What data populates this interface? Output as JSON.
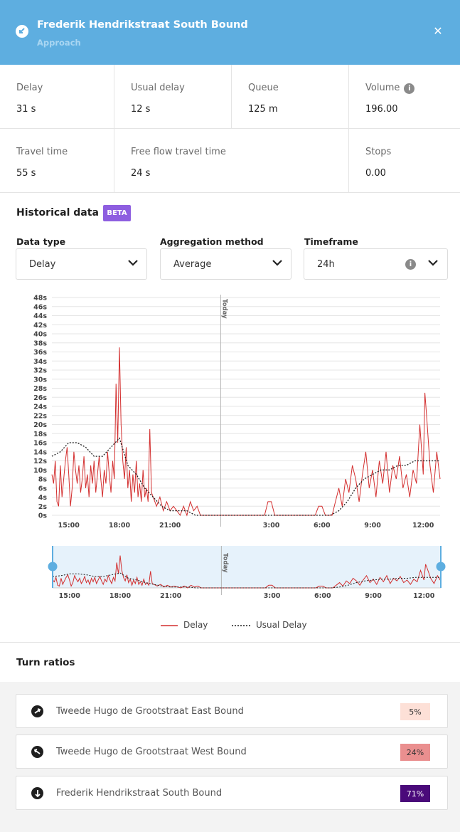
{
  "header": {
    "title": "Frederik Hendrikstraat South Bound",
    "subtitle": "Approach",
    "close_icon": "close-icon",
    "direction_icon": "approach-direction-icon"
  },
  "stats": [
    {
      "label": "Delay",
      "value": "31 s"
    },
    {
      "label": "Usual delay",
      "value": "12 s"
    },
    {
      "label": "Queue",
      "value": "125 m"
    },
    {
      "label": "Volume",
      "value": "196.00",
      "info": "i"
    },
    {
      "label": "Travel time",
      "value": "55 s"
    },
    {
      "label": "Free flow travel time",
      "value": "24 s"
    },
    {
      "label": "Stops",
      "value": "0.00"
    }
  ],
  "historical": {
    "title": "Historical data",
    "badge": "BETA",
    "filters": [
      {
        "label": "Data type",
        "value": "Delay"
      },
      {
        "label": "Aggregation method",
        "value": "Average"
      },
      {
        "label": "Timeframe",
        "value": "24h",
        "info": "i"
      }
    ]
  },
  "chart_data": {
    "type": "line",
    "y_unit": "s",
    "ylim": [
      0,
      48
    ],
    "y_ticks": [
      "0s",
      "2s",
      "4s",
      "6s",
      "8s",
      "10s",
      "12s",
      "14s",
      "16s",
      "18s",
      "20s",
      "22s",
      "24s",
      "26s",
      "28s",
      "30s",
      "32s",
      "34s",
      "36s",
      "38s",
      "40s",
      "42s",
      "44s",
      "46s",
      "48s"
    ],
    "x_ticks": [
      "15:00",
      "18:00",
      "21:00",
      "3:00",
      "6:00",
      "9:00",
      "12:00"
    ],
    "x_tick_hours": [
      15,
      18,
      21,
      27,
      30,
      33,
      36
    ],
    "x_range_hours": [
      14.0,
      37.0
    ],
    "marker": {
      "label": "Today",
      "hour": 24
    },
    "grid": true,
    "legend_placement": "bottom",
    "series": [
      {
        "name": "Delay",
        "color": "#d32f2f",
        "style": "solid",
        "points": [
          [
            14.0,
            9
          ],
          [
            14.1,
            7
          ],
          [
            14.2,
            12
          ],
          [
            14.3,
            3
          ],
          [
            14.4,
            2
          ],
          [
            14.5,
            11
          ],
          [
            14.6,
            4
          ],
          [
            14.7,
            8
          ],
          [
            14.8,
            12
          ],
          [
            14.9,
            15
          ],
          [
            15.0,
            9
          ],
          [
            15.1,
            2
          ],
          [
            15.2,
            6
          ],
          [
            15.3,
            14
          ],
          [
            15.4,
            10
          ],
          [
            15.5,
            7
          ],
          [
            15.6,
            11
          ],
          [
            15.7,
            5
          ],
          [
            15.8,
            8
          ],
          [
            15.9,
            13
          ],
          [
            16.0,
            6
          ],
          [
            16.1,
            9
          ],
          [
            16.2,
            4
          ],
          [
            16.3,
            11
          ],
          [
            16.4,
            7
          ],
          [
            16.5,
            12
          ],
          [
            16.6,
            5
          ],
          [
            16.7,
            9
          ],
          [
            16.8,
            13
          ],
          [
            16.9,
            8
          ],
          [
            17.0,
            4
          ],
          [
            17.1,
            10
          ],
          [
            17.2,
            7
          ],
          [
            17.3,
            14
          ],
          [
            17.4,
            9
          ],
          [
            17.5,
            5
          ],
          [
            17.6,
            12
          ],
          [
            17.7,
            8
          ],
          [
            17.8,
            29
          ],
          [
            17.9,
            16
          ],
          [
            18.0,
            37
          ],
          [
            18.1,
            20
          ],
          [
            18.2,
            12
          ],
          [
            18.3,
            8
          ],
          [
            18.4,
            15
          ],
          [
            18.5,
            6
          ],
          [
            18.6,
            10
          ],
          [
            18.7,
            3
          ],
          [
            18.8,
            9
          ],
          [
            18.9,
            5
          ],
          [
            19.0,
            12
          ],
          [
            19.1,
            4
          ],
          [
            19.2,
            7
          ],
          [
            19.3,
            3
          ],
          [
            19.4,
            10
          ],
          [
            19.5,
            4
          ],
          [
            19.6,
            6
          ],
          [
            19.7,
            3
          ],
          [
            19.8,
            19
          ],
          [
            19.9,
            5
          ],
          [
            20.0,
            4
          ],
          [
            20.2,
            2
          ],
          [
            20.4,
            4
          ],
          [
            20.6,
            1
          ],
          [
            20.8,
            3
          ],
          [
            21.0,
            1
          ],
          [
            21.2,
            2
          ],
          [
            21.4,
            1
          ],
          [
            21.6,
            0
          ],
          [
            21.8,
            2
          ],
          [
            22.0,
            0
          ],
          [
            22.2,
            3
          ],
          [
            22.4,
            1
          ],
          [
            22.6,
            2
          ],
          [
            22.8,
            0
          ],
          [
            23.0,
            0
          ],
          [
            23.2,
            0
          ],
          [
            23.6,
            0
          ],
          [
            24.0,
            0
          ],
          [
            25.0,
            0
          ],
          [
            26.0,
            0
          ],
          [
            26.6,
            0
          ],
          [
            26.8,
            3
          ],
          [
            27.0,
            3
          ],
          [
            27.2,
            0
          ],
          [
            27.6,
            0
          ],
          [
            28.0,
            0
          ],
          [
            29.0,
            0
          ],
          [
            29.6,
            0
          ],
          [
            29.8,
            2
          ],
          [
            30.0,
            2
          ],
          [
            30.2,
            0
          ],
          [
            30.6,
            0
          ],
          [
            30.8,
            3
          ],
          [
            31.0,
            6
          ],
          [
            31.2,
            2
          ],
          [
            31.4,
            8
          ],
          [
            31.6,
            5
          ],
          [
            31.8,
            11
          ],
          [
            32.0,
            8
          ],
          [
            32.2,
            3
          ],
          [
            32.4,
            9
          ],
          [
            32.6,
            14
          ],
          [
            32.8,
            6
          ],
          [
            33.0,
            10
          ],
          [
            33.2,
            4
          ],
          [
            33.4,
            12
          ],
          [
            33.6,
            7
          ],
          [
            33.8,
            14
          ],
          [
            34.0,
            5
          ],
          [
            34.2,
            11
          ],
          [
            34.4,
            8
          ],
          [
            34.6,
            13
          ],
          [
            34.8,
            6
          ],
          [
            35.0,
            9
          ],
          [
            35.2,
            4
          ],
          [
            35.4,
            10
          ],
          [
            35.6,
            7
          ],
          [
            35.8,
            20
          ],
          [
            36.0,
            9
          ],
          [
            36.1,
            27
          ],
          [
            36.2,
            22
          ],
          [
            36.4,
            11
          ],
          [
            36.6,
            5
          ],
          [
            36.8,
            14
          ],
          [
            37.0,
            8
          ]
        ]
      },
      {
        "name": "Usual Delay",
        "color": "#1f1f1f",
        "style": "dotted",
        "points": [
          [
            14.0,
            13
          ],
          [
            14.5,
            14
          ],
          [
            15.0,
            16
          ],
          [
            15.5,
            16
          ],
          [
            16.0,
            15
          ],
          [
            16.5,
            13
          ],
          [
            17.0,
            13
          ],
          [
            17.5,
            15
          ],
          [
            18.0,
            17
          ],
          [
            18.5,
            11
          ],
          [
            19.0,
            9
          ],
          [
            19.5,
            6
          ],
          [
            20.0,
            4
          ],
          [
            20.5,
            2
          ],
          [
            21.0,
            1
          ],
          [
            21.5,
            1
          ],
          [
            22.0,
            1
          ],
          [
            22.5,
            0
          ],
          [
            23.0,
            0
          ],
          [
            24.0,
            0
          ],
          [
            25.0,
            0
          ],
          [
            26.0,
            0
          ],
          [
            27.0,
            0
          ],
          [
            28.0,
            0
          ],
          [
            29.0,
            0
          ],
          [
            30.0,
            0
          ],
          [
            30.5,
            0
          ],
          [
            31.0,
            1
          ],
          [
            31.5,
            3
          ],
          [
            32.0,
            6
          ],
          [
            32.5,
            8
          ],
          [
            33.0,
            9
          ],
          [
            33.5,
            10
          ],
          [
            34.0,
            10
          ],
          [
            34.5,
            11
          ],
          [
            35.0,
            11
          ],
          [
            35.5,
            12
          ],
          [
            36.0,
            12
          ],
          [
            36.5,
            12
          ],
          [
            37.0,
            12
          ]
        ]
      }
    ]
  },
  "brush": {
    "marker_label": "Today",
    "x_ticks": [
      "15:00",
      "18:00",
      "21:00",
      "3:00",
      "6:00",
      "9:00",
      "12:00"
    ]
  },
  "legend": {
    "delay": "Delay",
    "usual": "Usual Delay"
  },
  "turns": {
    "title": "Turn ratios",
    "items": [
      {
        "name": "Tweede Hugo de Grootstraat East Bound",
        "pct": "5%",
        "color": "#fde0d7",
        "text_color": "#333333"
      },
      {
        "name": "Tweede Hugo de Grootstraat West Bound",
        "pct": "24%",
        "color": "#ea8f8f",
        "text_color": "#333333"
      },
      {
        "name": "Frederik Hendrikstraat South Bound",
        "pct": "71%",
        "color": "#4a0a7a",
        "text_color": "#ffffff"
      }
    ]
  }
}
